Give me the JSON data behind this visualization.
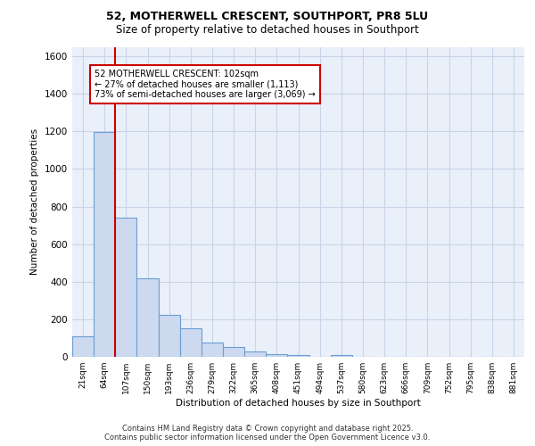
{
  "title1": "52, MOTHERWELL CRESCENT, SOUTHPORT, PR8 5LU",
  "title2": "Size of property relative to detached houses in Southport",
  "xlabel": "Distribution of detached houses by size in Southport",
  "ylabel": "Number of detached properties",
  "categories": [
    "21sqm",
    "64sqm",
    "107sqm",
    "150sqm",
    "193sqm",
    "236sqm",
    "279sqm",
    "322sqm",
    "365sqm",
    "408sqm",
    "451sqm",
    "494sqm",
    "537sqm",
    "580sqm",
    "623sqm",
    "666sqm",
    "709sqm",
    "752sqm",
    "795sqm",
    "838sqm",
    "881sqm"
  ],
  "values": [
    110,
    1195,
    740,
    420,
    225,
    150,
    75,
    50,
    30,
    15,
    10,
    0,
    10,
    0,
    0,
    0,
    0,
    0,
    0,
    0,
    0
  ],
  "bar_color": "#ccd9ee",
  "bar_edge_color": "#6b9fd4",
  "vline_color": "#cc0000",
  "vline_x": 1.5,
  "annotation_text": "52 MOTHERWELL CRESCENT: 102sqm\n← 27% of detached houses are smaller (1,113)\n73% of semi-detached houses are larger (3,069) →",
  "annotation_box_color": "#ffffff",
  "annotation_box_edge": "#cc0000",
  "ylim": [
    0,
    1650
  ],
  "yticks": [
    0,
    200,
    400,
    600,
    800,
    1000,
    1200,
    1400,
    1600
  ],
  "grid_color": "#c8d4e8",
  "bg_color": "#eaf0fa",
  "footer1": "Contains HM Land Registry data © Crown copyright and database right 2025.",
  "footer2": "Contains public sector information licensed under the Open Government Licence v3.0."
}
